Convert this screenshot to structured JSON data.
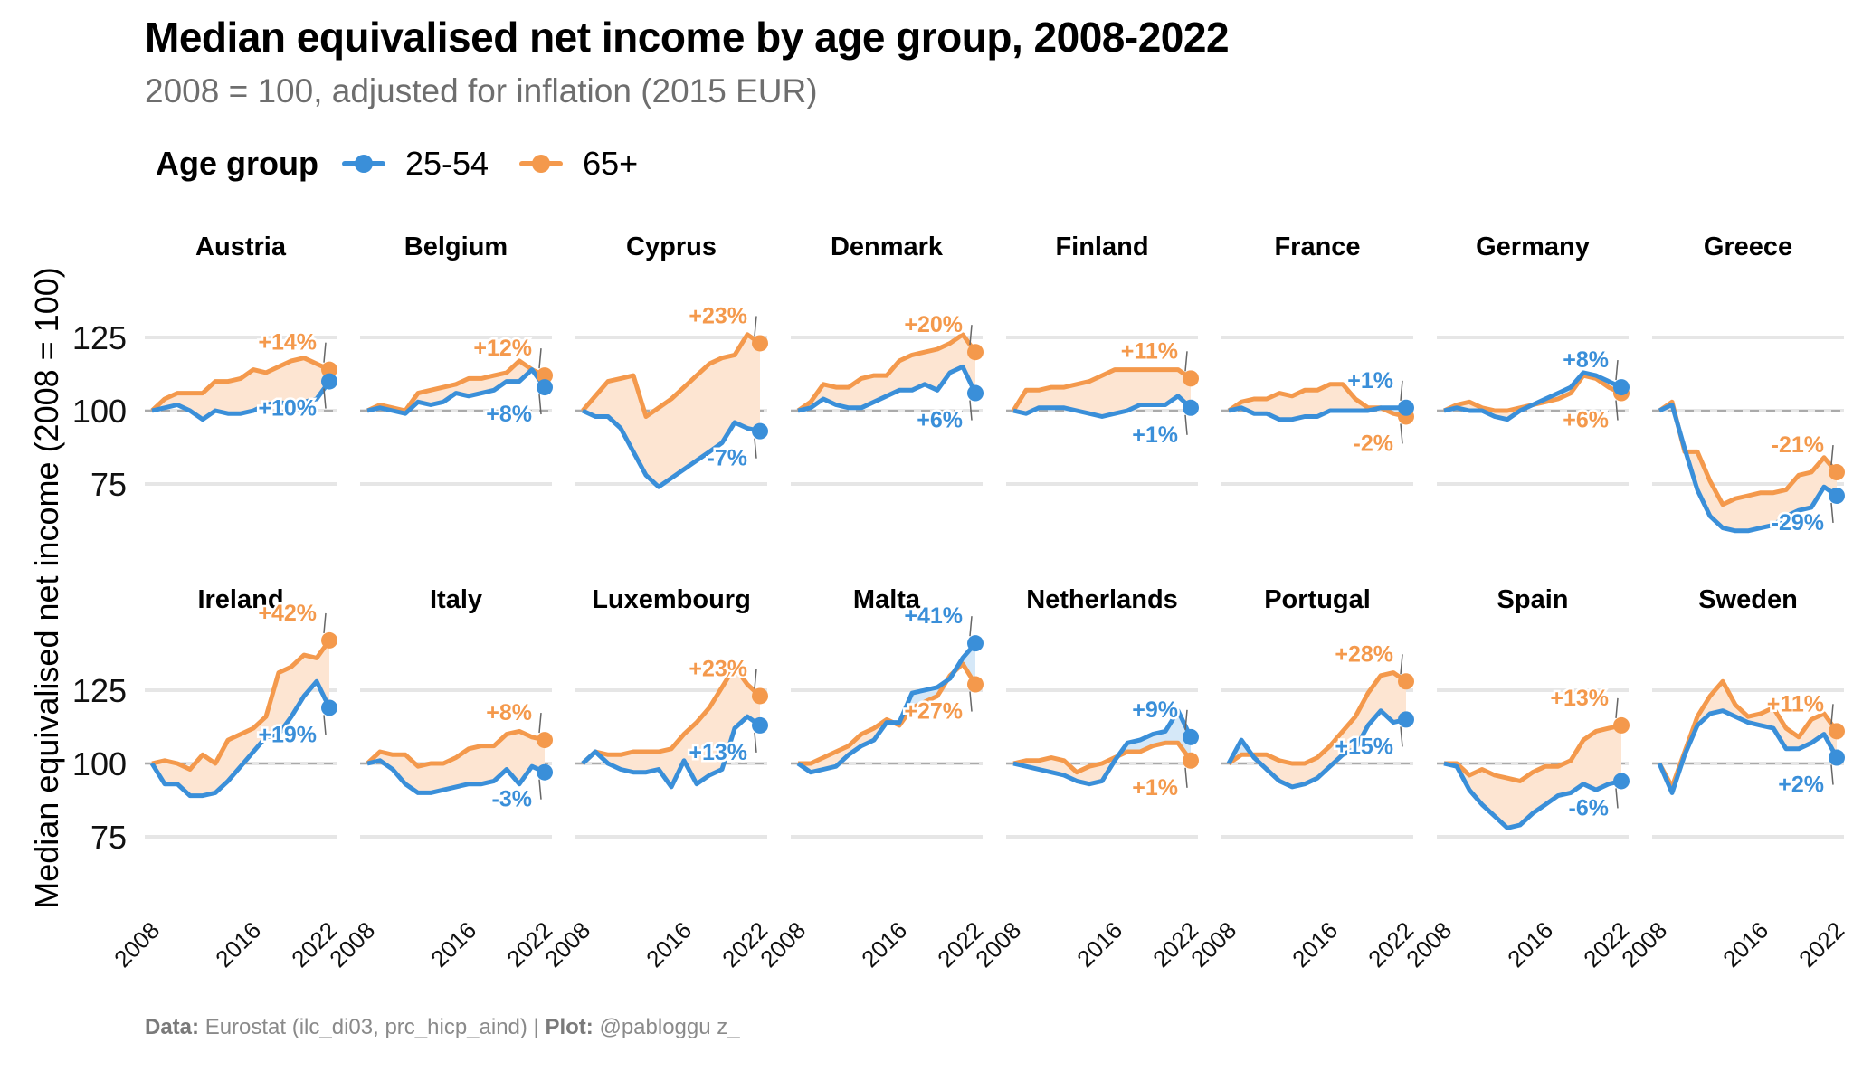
{
  "header": {
    "title": "Median equivalised net income by age group, 2008-2022",
    "subtitle": "2008 = 100, adjusted for inflation (2015 EUR)"
  },
  "legend": {
    "title": "Age group",
    "items": [
      {
        "label": "25-54",
        "color": "#3a8fd9"
      },
      {
        "label": "65+",
        "color": "#f4994c"
      }
    ]
  },
  "footer": {
    "data_label": "Data:",
    "data_text": "Eurostat (ilc_di03, prc_hicp_aind) | ",
    "plot_label": "Plot:",
    "plot_text": "@pabloggu z_"
  },
  "chart_data": {
    "type": "line",
    "title": "Median equivalised net income by age group, 2008-2022",
    "subtitle": "2008 = 100, adjusted for inflation (2015 EUR)",
    "xlabel": "",
    "ylabel": "Median equivalised net income (2008 = 100)",
    "x": [
      2008,
      2009,
      2010,
      2011,
      2012,
      2013,
      2014,
      2015,
      2016,
      2017,
      2018,
      2019,
      2020,
      2021,
      2022
    ],
    "x_ticks": [
      "2008",
      "2016",
      "2022"
    ],
    "y_ticks": [
      75,
      100,
      125
    ],
    "ylim": [
      60,
      145
    ],
    "reference_line": 100,
    "grid": true,
    "legend_position": "top-left",
    "series_names": [
      "25-54",
      "65+"
    ],
    "colors": {
      "25-54": "#3a8fd9",
      "65+": "#f4994c",
      "fill_65_above": "#fde5d2",
      "fill_2554_above": "#d5e8f8"
    },
    "panels": [
      {
        "country": "Austria",
        "s2554": [
          100,
          101,
          102,
          100,
          97,
          100,
          99,
          99,
          100,
          102,
          103,
          102,
          103,
          104,
          110
        ],
        "s65": [
          100,
          104,
          106,
          106,
          106,
          110,
          110,
          111,
          114,
          113,
          115,
          117,
          118,
          116,
          114
        ],
        "label_2554": "+10%",
        "label_65": "+14%"
      },
      {
        "country": "Belgium",
        "s2554": [
          100,
          101,
          100,
          99,
          103,
          102,
          103,
          106,
          105,
          106,
          107,
          110,
          110,
          114,
          108
        ],
        "s65": [
          100,
          102,
          101,
          100,
          106,
          107,
          108,
          109,
          111,
          111,
          112,
          113,
          117,
          114,
          112
        ],
        "label_2554": "+8%",
        "label_65": "+12%"
      },
      {
        "country": "Cyprus",
        "s2554": [
          100,
          98,
          98,
          94,
          86,
          78,
          74,
          77,
          80,
          83,
          86,
          89,
          96,
          94,
          93
        ],
        "s65": [
          100,
          105,
          110,
          111,
          112,
          98,
          101,
          104,
          108,
          112,
          116,
          118,
          119,
          126,
          123
        ],
        "label_2554": "-7%",
        "label_65": "+23%"
      },
      {
        "country": "Denmark",
        "s2554": [
          100,
          101,
          104,
          102,
          101,
          101,
          103,
          105,
          107,
          107,
          109,
          107,
          113,
          115,
          106
        ],
        "s65": [
          100,
          103,
          109,
          108,
          108,
          111,
          112,
          112,
          117,
          119,
          120,
          121,
          123,
          126,
          120
        ],
        "label_2554": "+6%",
        "label_65": "+20%"
      },
      {
        "country": "Finland",
        "s2554": [
          100,
          99,
          101,
          101,
          101,
          100,
          99,
          98,
          99,
          100,
          102,
          102,
          102,
          105,
          101
        ],
        "s65": [
          100,
          107,
          107,
          108,
          108,
          109,
          110,
          112,
          114,
          114,
          114,
          114,
          114,
          114,
          111
        ],
        "label_2554": "+1%",
        "label_65": "+11%"
      },
      {
        "country": "France",
        "s2554": [
          100,
          101,
          99,
          99,
          97,
          97,
          98,
          98,
          100,
          100,
          100,
          100,
          101,
          101,
          101
        ],
        "s65": [
          100,
          103,
          104,
          104,
          106,
          105,
          107,
          107,
          109,
          109,
          104,
          101,
          101,
          99,
          98
        ],
        "label_2554": "+1%",
        "label_65": "-2%"
      },
      {
        "country": "Germany",
        "s2554": [
          100,
          101,
          100,
          100,
          98,
          97,
          100,
          102,
          104,
          106,
          108,
          113,
          112,
          110,
          108
        ],
        "s65": [
          100,
          102,
          103,
          101,
          100,
          100,
          101,
          102,
          103,
          104,
          106,
          112,
          111,
          108,
          106
        ],
        "label_2554": "+8%",
        "label_65": "+6%"
      },
      {
        "country": "Greece",
        "s2554": [
          100,
          102,
          87,
          73,
          64,
          60,
          59,
          59,
          60,
          61,
          64,
          66,
          67,
          74,
          71
        ],
        "s65": [
          100,
          103,
          86,
          86,
          76,
          68,
          70,
          71,
          72,
          72,
          73,
          78,
          79,
          84,
          79
        ],
        "label_2554": "-29%",
        "label_65": "-21%"
      },
      {
        "country": "Ireland",
        "s2554": [
          100,
          93,
          93,
          89,
          89,
          90,
          94,
          99,
          104,
          109,
          110,
          116,
          123,
          128,
          119
        ],
        "s65": [
          100,
          101,
          100,
          98,
          103,
          100,
          108,
          110,
          112,
          116,
          131,
          133,
          137,
          136,
          142
        ],
        "label_2554": "+19%",
        "label_65": "+42%"
      },
      {
        "country": "Italy",
        "s2554": [
          100,
          101,
          98,
          93,
          90,
          90,
          91,
          92,
          93,
          93,
          94,
          98,
          93,
          99,
          97
        ],
        "s65": [
          100,
          104,
          103,
          103,
          99,
          100,
          100,
          102,
          105,
          106,
          106,
          110,
          111,
          109,
          108
        ],
        "label_2554": "-3%",
        "label_65": "+8%"
      },
      {
        "country": "Luxembourg",
        "s2554": [
          100,
          104,
          100,
          98,
          97,
          97,
          98,
          92,
          101,
          93,
          96,
          98,
          112,
          116,
          113
        ],
        "s65": [
          100,
          104,
          103,
          103,
          104,
          104,
          104,
          105,
          110,
          114,
          119,
          126,
          133,
          127,
          123
        ],
        "label_2554": "+13%",
        "label_65": "+23%"
      },
      {
        "country": "Malta",
        "s2554": [
          100,
          97,
          98,
          99,
          103,
          106,
          108,
          114,
          114,
          124,
          125,
          126,
          129,
          136,
          141
        ],
        "s65": [
          100,
          100,
          102,
          104,
          106,
          110,
          112,
          115,
          113,
          119,
          121,
          123,
          130,
          134,
          127
        ],
        "label_2554": "+41%",
        "label_65": "+27%"
      },
      {
        "country": "Netherlands",
        "s2554": [
          100,
          99,
          98,
          97,
          96,
          94,
          93,
          94,
          101,
          107,
          108,
          110,
          111,
          118,
          109
        ],
        "s65": [
          100,
          101,
          101,
          102,
          101,
          97,
          99,
          100,
          102,
          104,
          104,
          106,
          107,
          107,
          101
        ],
        "label_2554": "+9%",
        "label_65": "+1%"
      },
      {
        "country": "Portugal",
        "s2554": [
          100,
          108,
          102,
          98,
          94,
          92,
          93,
          95,
          99,
          103,
          105,
          113,
          118,
          114,
          115
        ],
        "s65": [
          100,
          103,
          103,
          103,
          101,
          100,
          100,
          102,
          106,
          111,
          116,
          124,
          130,
          131,
          128
        ],
        "label_2554": "+15%",
        "label_65": "+28%"
      },
      {
        "country": "Spain",
        "s2554": [
          100,
          99,
          91,
          86,
          82,
          78,
          79,
          83,
          86,
          89,
          90,
          93,
          91,
          93,
          94
        ],
        "s65": [
          100,
          100,
          96,
          98,
          96,
          95,
          94,
          97,
          99,
          99,
          101,
          108,
          111,
          112,
          113
        ],
        "label_2554": "-6%",
        "label_65": "+13%"
      },
      {
        "country": "Sweden",
        "s2554": [
          100,
          90,
          103,
          113,
          117,
          118,
          116,
          114,
          113,
          112,
          105,
          105,
          107,
          110,
          102
        ],
        "s65": [
          100,
          92,
          104,
          116,
          123,
          128,
          120,
          116,
          117,
          119,
          112,
          109,
          115,
          117,
          111
        ],
        "label_2554": "+2%",
        "label_65": "+11%"
      }
    ]
  }
}
